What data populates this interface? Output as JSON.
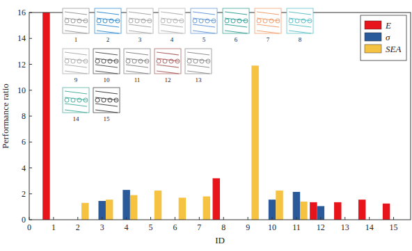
{
  "chart_data": {
    "type": "bar",
    "x_label": "ID",
    "y_label": "Performance ratio",
    "x": [
      1,
      2,
      3,
      4,
      5,
      6,
      7,
      8,
      9,
      10,
      11,
      12,
      13,
      14,
      15
    ],
    "series": [
      {
        "name": "E",
        "color": "#e8141c",
        "values": [
          16.0,
          null,
          null,
          null,
          null,
          null,
          null,
          3.2,
          null,
          null,
          null,
          1.35,
          1.35,
          1.55,
          1.25
        ]
      },
      {
        "name": "σ",
        "color": "#2b5a9a",
        "values": [
          null,
          null,
          1.45,
          2.3,
          null,
          null,
          null,
          null,
          null,
          1.55,
          2.15,
          1.05,
          null,
          null,
          null
        ]
      },
      {
        "name": "SEA",
        "color": "#f5c242",
        "values": [
          null,
          1.3,
          1.55,
          1.9,
          2.25,
          1.7,
          1.8,
          null,
          11.9,
          2.25,
          1.4,
          null,
          null,
          null,
          null
        ]
      }
    ],
    "xlim": [
      0,
      15.7
    ],
    "xticks": [
      0,
      1,
      2,
      3,
      4,
      5,
      6,
      7,
      8,
      9,
      10,
      11,
      12,
      13,
      14,
      15
    ],
    "ylim": [
      0,
      16
    ],
    "yticks": [
      0,
      2,
      4,
      6,
      8,
      10,
      12,
      14,
      16
    ],
    "legend": "upper right",
    "grid": false,
    "annotations": [
      "1",
      "2",
      "3",
      "4",
      "5",
      "6",
      "7",
      "8",
      "9",
      "10",
      "11",
      "12",
      "13",
      "14",
      "15"
    ]
  }
}
